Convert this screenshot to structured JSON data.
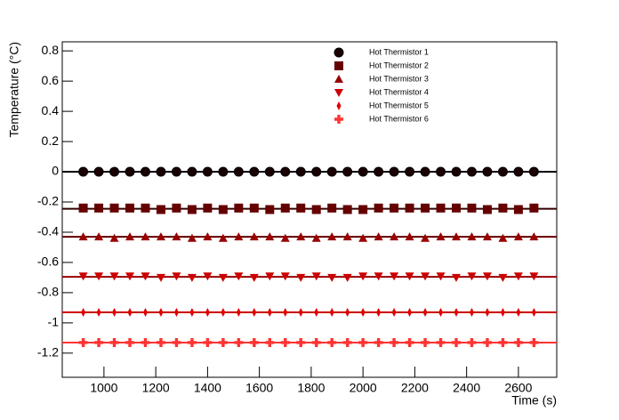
{
  "chart_data": {
    "type": "scatter",
    "xlabel": "Time (s)",
    "ylabel": "Temperature (°C)",
    "x": [
      920,
      980,
      1040,
      1100,
      1160,
      1220,
      1280,
      1340,
      1400,
      1460,
      1520,
      1580,
      1640,
      1700,
      1760,
      1820,
      1880,
      1940,
      2000,
      2060,
      2120,
      2180,
      2240,
      2300,
      2360,
      2420,
      2480,
      2540,
      2600,
      2660
    ],
    "xlim": [
      839,
      2748
    ],
    "xticks": [
      1000,
      1200,
      1400,
      1600,
      1800,
      2000,
      2200,
      2400,
      2600
    ],
    "ylim": [
      -1.36,
      0.86
    ],
    "yticks": [
      -1.2,
      -1,
      -0.8,
      -0.6,
      -0.4,
      -0.2,
      0,
      0.2,
      0.4,
      0.6,
      0.8
    ],
    "legend": "top-right",
    "series": [
      {
        "name": "Hot Thermistor 1",
        "color": "#1a0000",
        "line_color": "#000000",
        "marker": "circle",
        "fit": 0,
        "values": [
          0,
          0,
          0,
          0,
          0,
          0,
          0,
          0,
          0,
          0,
          0,
          0,
          0,
          0,
          0,
          0,
          0,
          0,
          0,
          0,
          0,
          0,
          0,
          0,
          0,
          0,
          0,
          0,
          0,
          0
        ]
      },
      {
        "name": "Hot Thermistor 2",
        "color": "#660000",
        "line_color": "#330000",
        "marker": "square",
        "fit": -0.245,
        "values": [
          -0.24,
          -0.24,
          -0.24,
          -0.24,
          -0.24,
          -0.25,
          -0.24,
          -0.25,
          -0.24,
          -0.25,
          -0.24,
          -0.24,
          -0.25,
          -0.24,
          -0.24,
          -0.25,
          -0.24,
          -0.25,
          -0.25,
          -0.24,
          -0.24,
          -0.24,
          -0.24,
          -0.24,
          -0.24,
          -0.24,
          -0.25,
          -0.24,
          -0.25,
          -0.24
        ]
      },
      {
        "name": "Hot Thermistor 3",
        "color": "#990000",
        "line_color": "#660000",
        "marker": "triangle-up",
        "fit": -0.43,
        "values": [
          -0.43,
          -0.43,
          -0.44,
          -0.43,
          -0.43,
          -0.43,
          -0.43,
          -0.44,
          -0.43,
          -0.44,
          -0.43,
          -0.43,
          -0.43,
          -0.44,
          -0.43,
          -0.44,
          -0.43,
          -0.43,
          -0.44,
          -0.43,
          -0.43,
          -0.43,
          -0.44,
          -0.43,
          -0.43,
          -0.43,
          -0.43,
          -0.44,
          -0.43,
          -0.43
        ]
      },
      {
        "name": "Hot Thermistor 4",
        "color": "#cc0000",
        "line_color": "#990000",
        "marker": "triangle-down",
        "fit": -0.695,
        "values": [
          -0.69,
          -0.69,
          -0.69,
          -0.69,
          -0.69,
          -0.7,
          -0.69,
          -0.7,
          -0.69,
          -0.7,
          -0.69,
          -0.7,
          -0.69,
          -0.69,
          -0.7,
          -0.69,
          -0.7,
          -0.7,
          -0.69,
          -0.69,
          -0.69,
          -0.69,
          -0.69,
          -0.69,
          -0.7,
          -0.69,
          -0.69,
          -0.7,
          -0.69,
          -0.69
        ]
      },
      {
        "name": "Hot Thermistor 5",
        "color": "#e00000",
        "line_color": "#cc0000",
        "marker": "diamond",
        "fit": -0.93,
        "values": [
          -0.93,
          -0.93,
          -0.93,
          -0.93,
          -0.93,
          -0.93,
          -0.93,
          -0.93,
          -0.93,
          -0.93,
          -0.93,
          -0.93,
          -0.93,
          -0.93,
          -0.93,
          -0.93,
          -0.93,
          -0.93,
          -0.93,
          -0.93,
          -0.93,
          -0.93,
          -0.93,
          -0.93,
          -0.93,
          -0.93,
          -0.93,
          -0.93,
          -0.93,
          -0.93
        ]
      },
      {
        "name": "Hot Thermistor 6",
        "color": "#ff3333",
        "line_color": "#ff3333",
        "marker": "cross",
        "fit": -1.13,
        "values": [
          -1.13,
          -1.13,
          -1.13,
          -1.13,
          -1.13,
          -1.13,
          -1.13,
          -1.13,
          -1.13,
          -1.13,
          -1.13,
          -1.13,
          -1.13,
          -1.13,
          -1.13,
          -1.13,
          -1.13,
          -1.13,
          -1.13,
          -1.13,
          -1.13,
          -1.13,
          -1.13,
          -1.13,
          -1.13,
          -1.13,
          -1.13,
          -1.13,
          -1.13,
          -1.13
        ]
      }
    ]
  }
}
